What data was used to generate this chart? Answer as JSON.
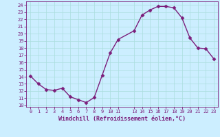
{
  "x": [
    0,
    1,
    2,
    3,
    4,
    5,
    6,
    7,
    8,
    9,
    10,
    11,
    13,
    14,
    15,
    16,
    17,
    18,
    19,
    20,
    21,
    22,
    23
  ],
  "y": [
    14.1,
    13.0,
    12.2,
    12.1,
    12.4,
    11.2,
    10.8,
    10.4,
    11.1,
    14.2,
    17.3,
    19.2,
    20.4,
    22.6,
    23.3,
    23.8,
    23.8,
    23.6,
    22.2,
    19.4,
    18.0,
    17.9,
    16.5
  ],
  "line_color": "#7B1E7B",
  "marker": "D",
  "marker_size": 2.5,
  "bg_color": "#cceeff",
  "grid_color": "#aadddd",
  "xlabel": "Windchill (Refroidissement éolien,°C)",
  "xlim": [
    -0.5,
    23.5
  ],
  "ylim": [
    9.8,
    24.5
  ],
  "yticks": [
    10,
    11,
    12,
    13,
    14,
    15,
    16,
    17,
    18,
    19,
    20,
    21,
    22,
    23,
    24
  ],
  "xticks": [
    0,
    1,
    2,
    3,
    4,
    5,
    6,
    7,
    8,
    9,
    10,
    11,
    13,
    14,
    15,
    16,
    17,
    18,
    19,
    20,
    21,
    22,
    23
  ],
  "tick_color": "#7B1E7B",
  "tick_fontsize": 5,
  "xlabel_fontsize": 6,
  "spine_color": "#7B1E7B",
  "linewidth": 1.0
}
